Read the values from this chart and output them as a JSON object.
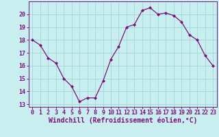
{
  "x": [
    0,
    1,
    2,
    3,
    4,
    5,
    6,
    7,
    8,
    9,
    10,
    11,
    12,
    13,
    14,
    15,
    16,
    17,
    18,
    19,
    20,
    21,
    22,
    23
  ],
  "y": [
    18.0,
    17.6,
    16.6,
    16.2,
    15.0,
    14.4,
    13.2,
    13.5,
    13.5,
    14.8,
    16.5,
    17.5,
    19.0,
    19.2,
    20.3,
    20.5,
    20.0,
    20.1,
    19.9,
    19.4,
    18.4,
    18.0,
    16.8,
    16.0
  ],
  "line_color": "#7b0f7b",
  "marker": "D",
  "marker_size": 2.0,
  "bg_color": "#c8eef0",
  "grid_color": "#a0d8d8",
  "xlabel": "Windchill (Refroidissement éolien,°C)",
  "xlim": [
    -0.5,
    23.5
  ],
  "ylim": [
    12.8,
    21.0
  ],
  "yticks": [
    13,
    14,
    15,
    16,
    17,
    18,
    19,
    20
  ],
  "xticks": [
    0,
    1,
    2,
    3,
    4,
    5,
    6,
    7,
    8,
    9,
    10,
    11,
    12,
    13,
    14,
    15,
    16,
    17,
    18,
    19,
    20,
    21,
    22,
    23
  ],
  "tick_label_color": "#7b0f7b",
  "tick_fontsize": 6.0,
  "xlabel_fontsize": 7.0,
  "spine_color": "#7b0f7b",
  "line_width": 0.9
}
